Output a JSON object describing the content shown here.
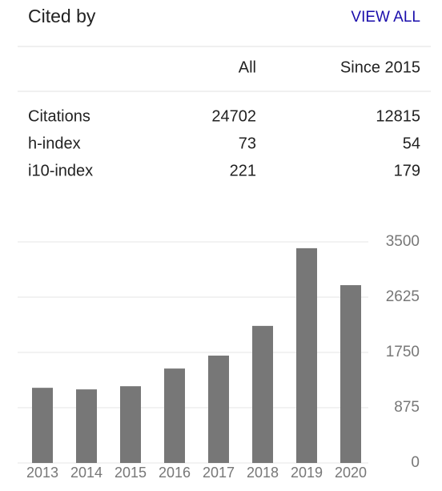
{
  "header": {
    "title": "Cited by",
    "link": "VIEW ALL"
  },
  "table": {
    "columns": [
      "All",
      "Since 2015"
    ],
    "rows": [
      [
        "Citations",
        24702,
        12815
      ],
      [
        "h-index",
        73,
        54
      ],
      [
        "i10-index",
        221,
        179
      ]
    ]
  },
  "chart_data": {
    "type": "bar",
    "categories": [
      "2013",
      "2014",
      "2015",
      "2016",
      "2017",
      "2018",
      "2019",
      "2020"
    ],
    "values": [
      1190,
      1165,
      1215,
      1495,
      1700,
      2170,
      3400,
      2815
    ],
    "color": "#777777",
    "ylim": [
      0,
      3500
    ],
    "yticks": [
      0,
      875,
      1750,
      2625,
      3500
    ],
    "grid": true
  }
}
